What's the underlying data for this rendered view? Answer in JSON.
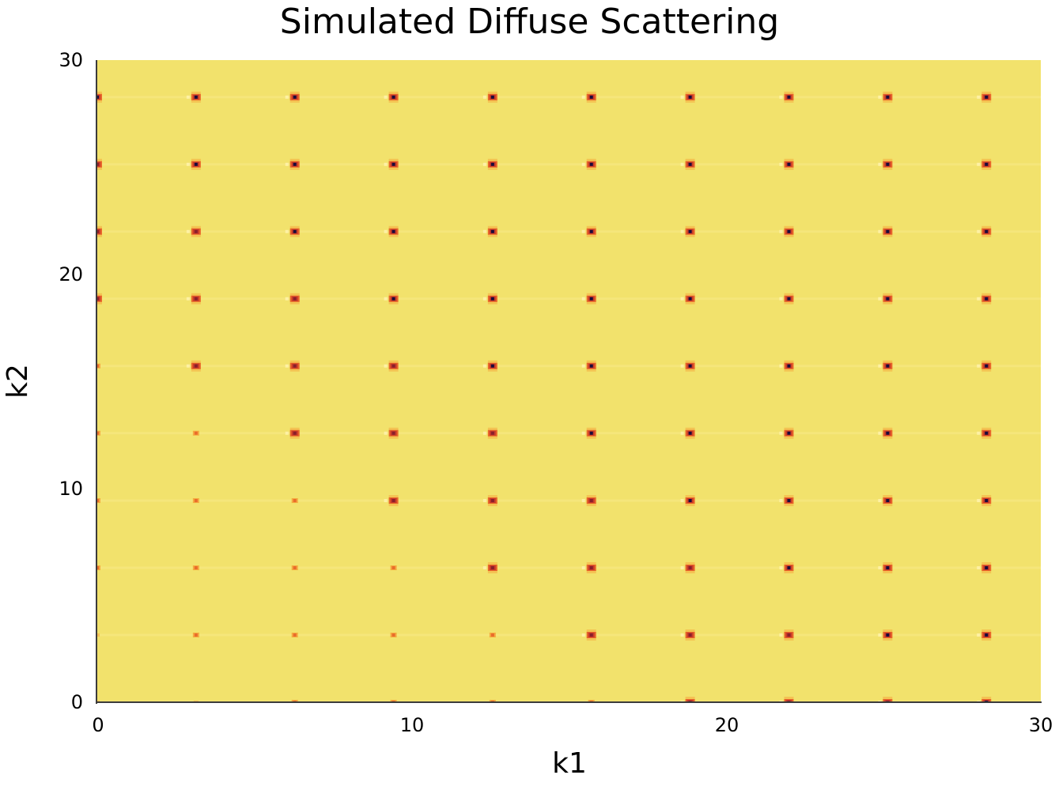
{
  "chart_data": {
    "type": "heatmap",
    "title": "Simulated Diffuse Scattering",
    "xlabel": "k1",
    "ylabel": "k2",
    "xlim": [
      0,
      30
    ],
    "ylim": [
      0,
      30
    ],
    "xticks": [
      0,
      10,
      20,
      30
    ],
    "yticks": [
      0,
      10,
      20,
      30
    ],
    "grid": false,
    "colorbar": false,
    "colormap": "inferno",
    "background_color": "#f2e26c",
    "description": "Square lattice of Bragg-like peaks at k1, k2 = n*pi (n = 0..9) on a nearly uniform high-intensity background; peak contrast grows toward larger k1 and k2",
    "peak_positions_k1": [
      0,
      3.14,
      6.28,
      9.42,
      12.57,
      15.71,
      18.85,
      21.99,
      25.13,
      28.27
    ],
    "peak_positions_k2": [
      0,
      3.14,
      6.28,
      9.42,
      12.57,
      15.71,
      18.85,
      21.99,
      25.13,
      28.27
    ],
    "peak_colors": {
      "strong_center": "#1a0b3a",
      "strong_ring": "#c83a2a",
      "medium": "#e8652a",
      "weak": "#f5a33a",
      "halo": "#fff2a8"
    }
  }
}
